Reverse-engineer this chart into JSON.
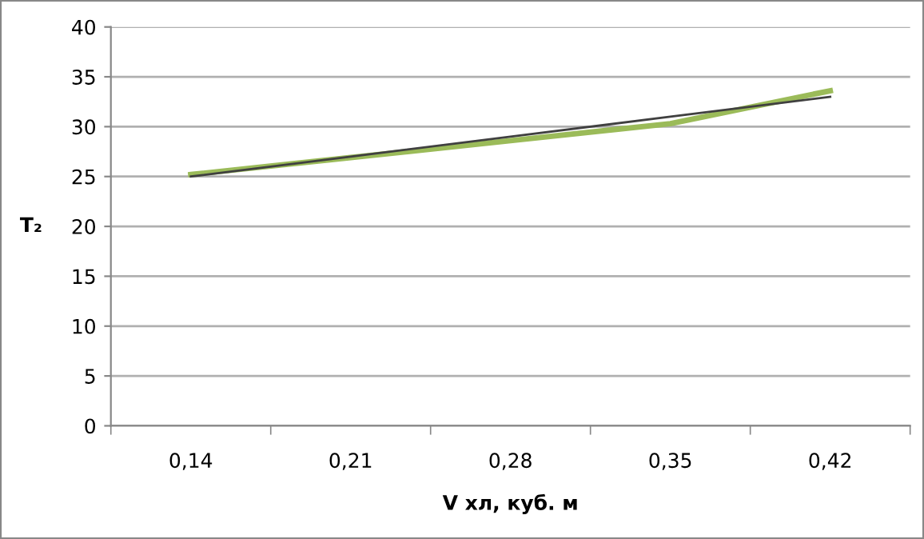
{
  "chart_data": {
    "type": "line",
    "xlabel": "V хл, куб. м",
    "ylabel": "T₂",
    "categories": [
      "0,14",
      "0,21",
      "0,28",
      "0,35",
      "0,42"
    ],
    "series": [
      {
        "color": "#9bbb59",
        "values": [
          25.2,
          26.9,
          28.6,
          30.3,
          33.6
        ]
      },
      {
        "color": "#404040",
        "values": [
          25.0,
          27.0,
          29.0,
          31.0,
          33.0
        ]
      }
    ],
    "ylim": [
      0,
      40
    ],
    "yticks": [
      0,
      5,
      10,
      15,
      20,
      25,
      30,
      35,
      40
    ],
    "grid": "y"
  }
}
